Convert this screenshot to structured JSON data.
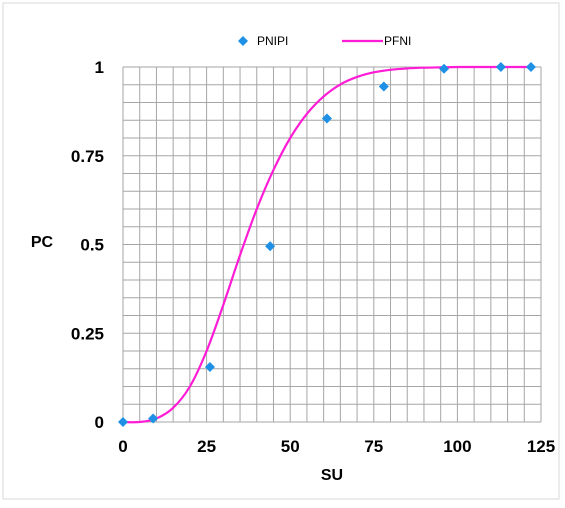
{
  "chart_data": {
    "type": "scatter",
    "xlabel": "SU",
    "ylabel": "PC",
    "xlim": [
      0,
      125
    ],
    "ylim": [
      0,
      1
    ],
    "x_ticks": [
      "0",
      "25",
      "50",
      "75",
      "100",
      "125"
    ],
    "y_ticks": [
      "0",
      "0.25",
      "0.5",
      "0.75",
      "1"
    ],
    "grid": true,
    "legend_position": "top-center",
    "series": [
      {
        "name": "PNIPI",
        "kind": "markers",
        "marker": "diamond",
        "color": "#1e90e6",
        "x": [
          0,
          9,
          26,
          44,
          61,
          78,
          96,
          113,
          122
        ],
        "y": [
          0.0,
          0.01,
          0.155,
          0.495,
          0.855,
          0.945,
          0.995,
          1.0,
          1.0
        ]
      },
      {
        "name": "PFNI",
        "kind": "line",
        "color": "#ff1cd6",
        "x": [
          0,
          5,
          10,
          15,
          20,
          25,
          30,
          35,
          40,
          45,
          50,
          55,
          60,
          65,
          70,
          75,
          80,
          85,
          90,
          95,
          100,
          105,
          110,
          115,
          122
        ],
        "y": [
          0.0,
          0.0,
          0.01,
          0.04,
          0.1,
          0.2,
          0.33,
          0.47,
          0.6,
          0.71,
          0.8,
          0.868,
          0.917,
          0.951,
          0.972,
          0.985,
          0.992,
          0.996,
          0.998,
          0.999,
          1.0,
          1.0,
          1.0,
          1.0,
          1.0
        ]
      }
    ]
  }
}
